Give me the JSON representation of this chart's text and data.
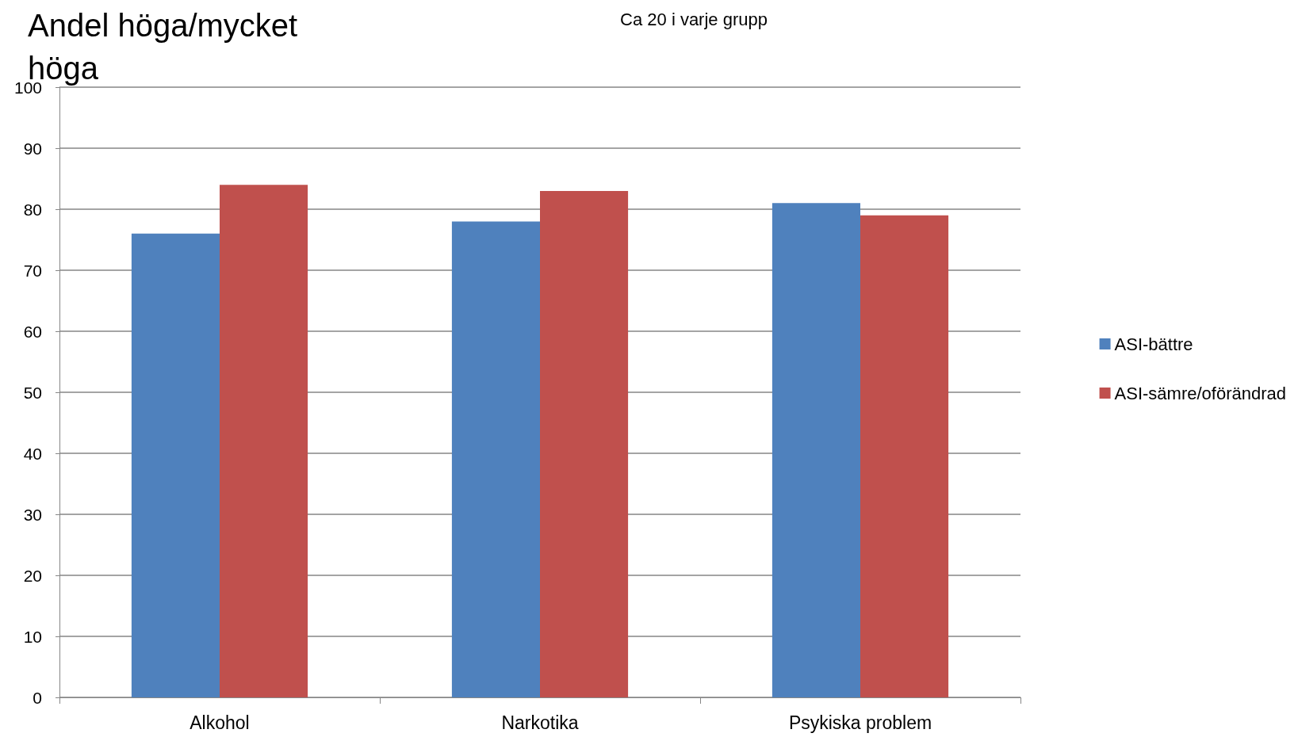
{
  "chart_data": {
    "type": "bar",
    "title": "Ca 20 i varje grupp",
    "ylabel": "Andel höga/mycket höga",
    "categories": [
      "Alkohol",
      "Narkotika",
      "Psykiska problem"
    ],
    "series": [
      {
        "name": "ASI-bättre",
        "color": "#4f81bd",
        "values": [
          76,
          78,
          81
        ]
      },
      {
        "name": "ASI-sämre/oförändrad",
        "color": "#c0504d",
        "values": [
          84,
          83,
          79
        ]
      }
    ],
    "ylim": [
      0,
      100
    ],
    "yticks": [
      0,
      10,
      20,
      30,
      40,
      50,
      60,
      70,
      80,
      90,
      100
    ],
    "grid": "y",
    "legend": "right"
  }
}
